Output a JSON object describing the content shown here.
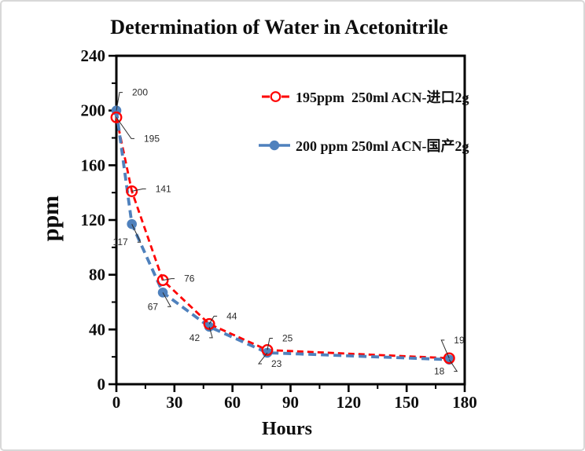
{
  "window": {
    "background": "#ffffff",
    "border_color": "#d8d8d8"
  },
  "chart_data": {
    "type": "line",
    "title": "Determination of Water in Acetonitrile",
    "xlabel": "Hours",
    "ylabel": "ppm",
    "xlim": [
      0,
      180
    ],
    "ylim": [
      0,
      240
    ],
    "xticks": [
      0,
      30,
      60,
      90,
      120,
      150,
      180
    ],
    "yticks": [
      0,
      40,
      80,
      120,
      160,
      200,
      240
    ],
    "x_minor_step": 15,
    "y_minor_step": 20,
    "grid": false,
    "legend_position": "inside-top-right",
    "axis_color": "#000000",
    "data_label_color": "#2b2b2b",
    "series": [
      {
        "name": "195ppm  250ml ACN-进口2g",
        "color": "#fe0000",
        "marker": "open-circle",
        "line_style": "dashed",
        "x": [
          0,
          8,
          24,
          48,
          78,
          172
        ],
        "y": [
          195,
          141,
          76,
          44,
          25,
          19
        ],
        "labels": [
          "195",
          "141",
          "76",
          "44",
          "25",
          "19"
        ],
        "label_offsets": [
          [
            33,
            27
          ],
          [
            28,
            -3
          ],
          [
            25,
            -2
          ],
          [
            20,
            -10
          ],
          [
            17,
            -15
          ],
          [
            4,
            -23
          ]
        ]
      },
      {
        "name": "200 ppm 250ml ACN-国产2g",
        "color": "#4f81bd",
        "marker": "filled-circle",
        "line_style": "dashed",
        "legend_sample": "solid",
        "x": [
          0,
          8,
          24,
          48,
          78,
          172
        ],
        "y": [
          200,
          117,
          67,
          42,
          23,
          18
        ],
        "labels": [
          "200",
          "117",
          "67",
          "42",
          "23",
          "18"
        ],
        "label_offsets": [
          [
            18,
            -23
          ],
          [
            -3,
            23
          ],
          [
            -4,
            18
          ],
          [
            -10,
            14
          ],
          [
            3,
            14
          ],
          [
            -4,
            15
          ]
        ]
      }
    ]
  }
}
